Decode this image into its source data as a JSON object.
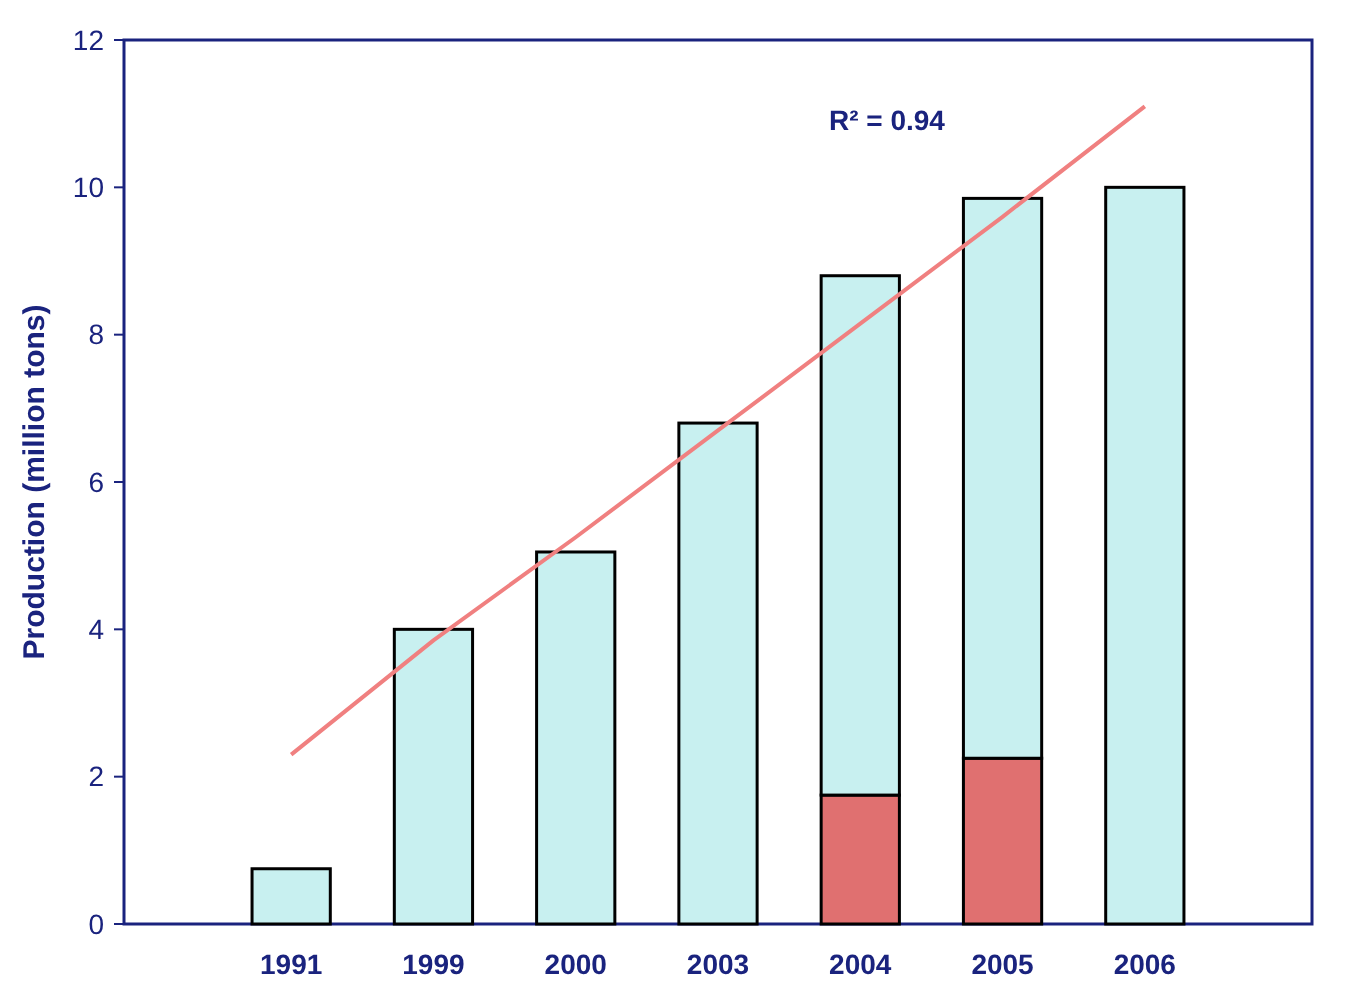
{
  "chart_data": {
    "type": "bar",
    "ylabel": "Production (million tons)",
    "categories": [
      "1991",
      "1999",
      "2000",
      "2003",
      "2004",
      "2005",
      "2006"
    ],
    "stacked": true,
    "ylim": [
      0,
      12
    ],
    "yticks": [
      0,
      2,
      4,
      6,
      8,
      10,
      12
    ],
    "grid": false,
    "series": [
      {
        "color": "#e07070",
        "values": [
          null,
          null,
          null,
          null,
          1.75,
          2.25,
          null
        ]
      },
      {
        "color": "#c8f0f0",
        "values": [
          0.75,
          4.0,
          5.05,
          6.8,
          7.05,
          7.6,
          10.0
        ]
      },
      {
        "type": "line",
        "color": "#f08080",
        "values": [
          2.3,
          3.85,
          5.25,
          6.7,
          8.15,
          9.6,
          11.1
        ]
      }
    ],
    "annotations": [
      "R² = 0.94"
    ]
  }
}
